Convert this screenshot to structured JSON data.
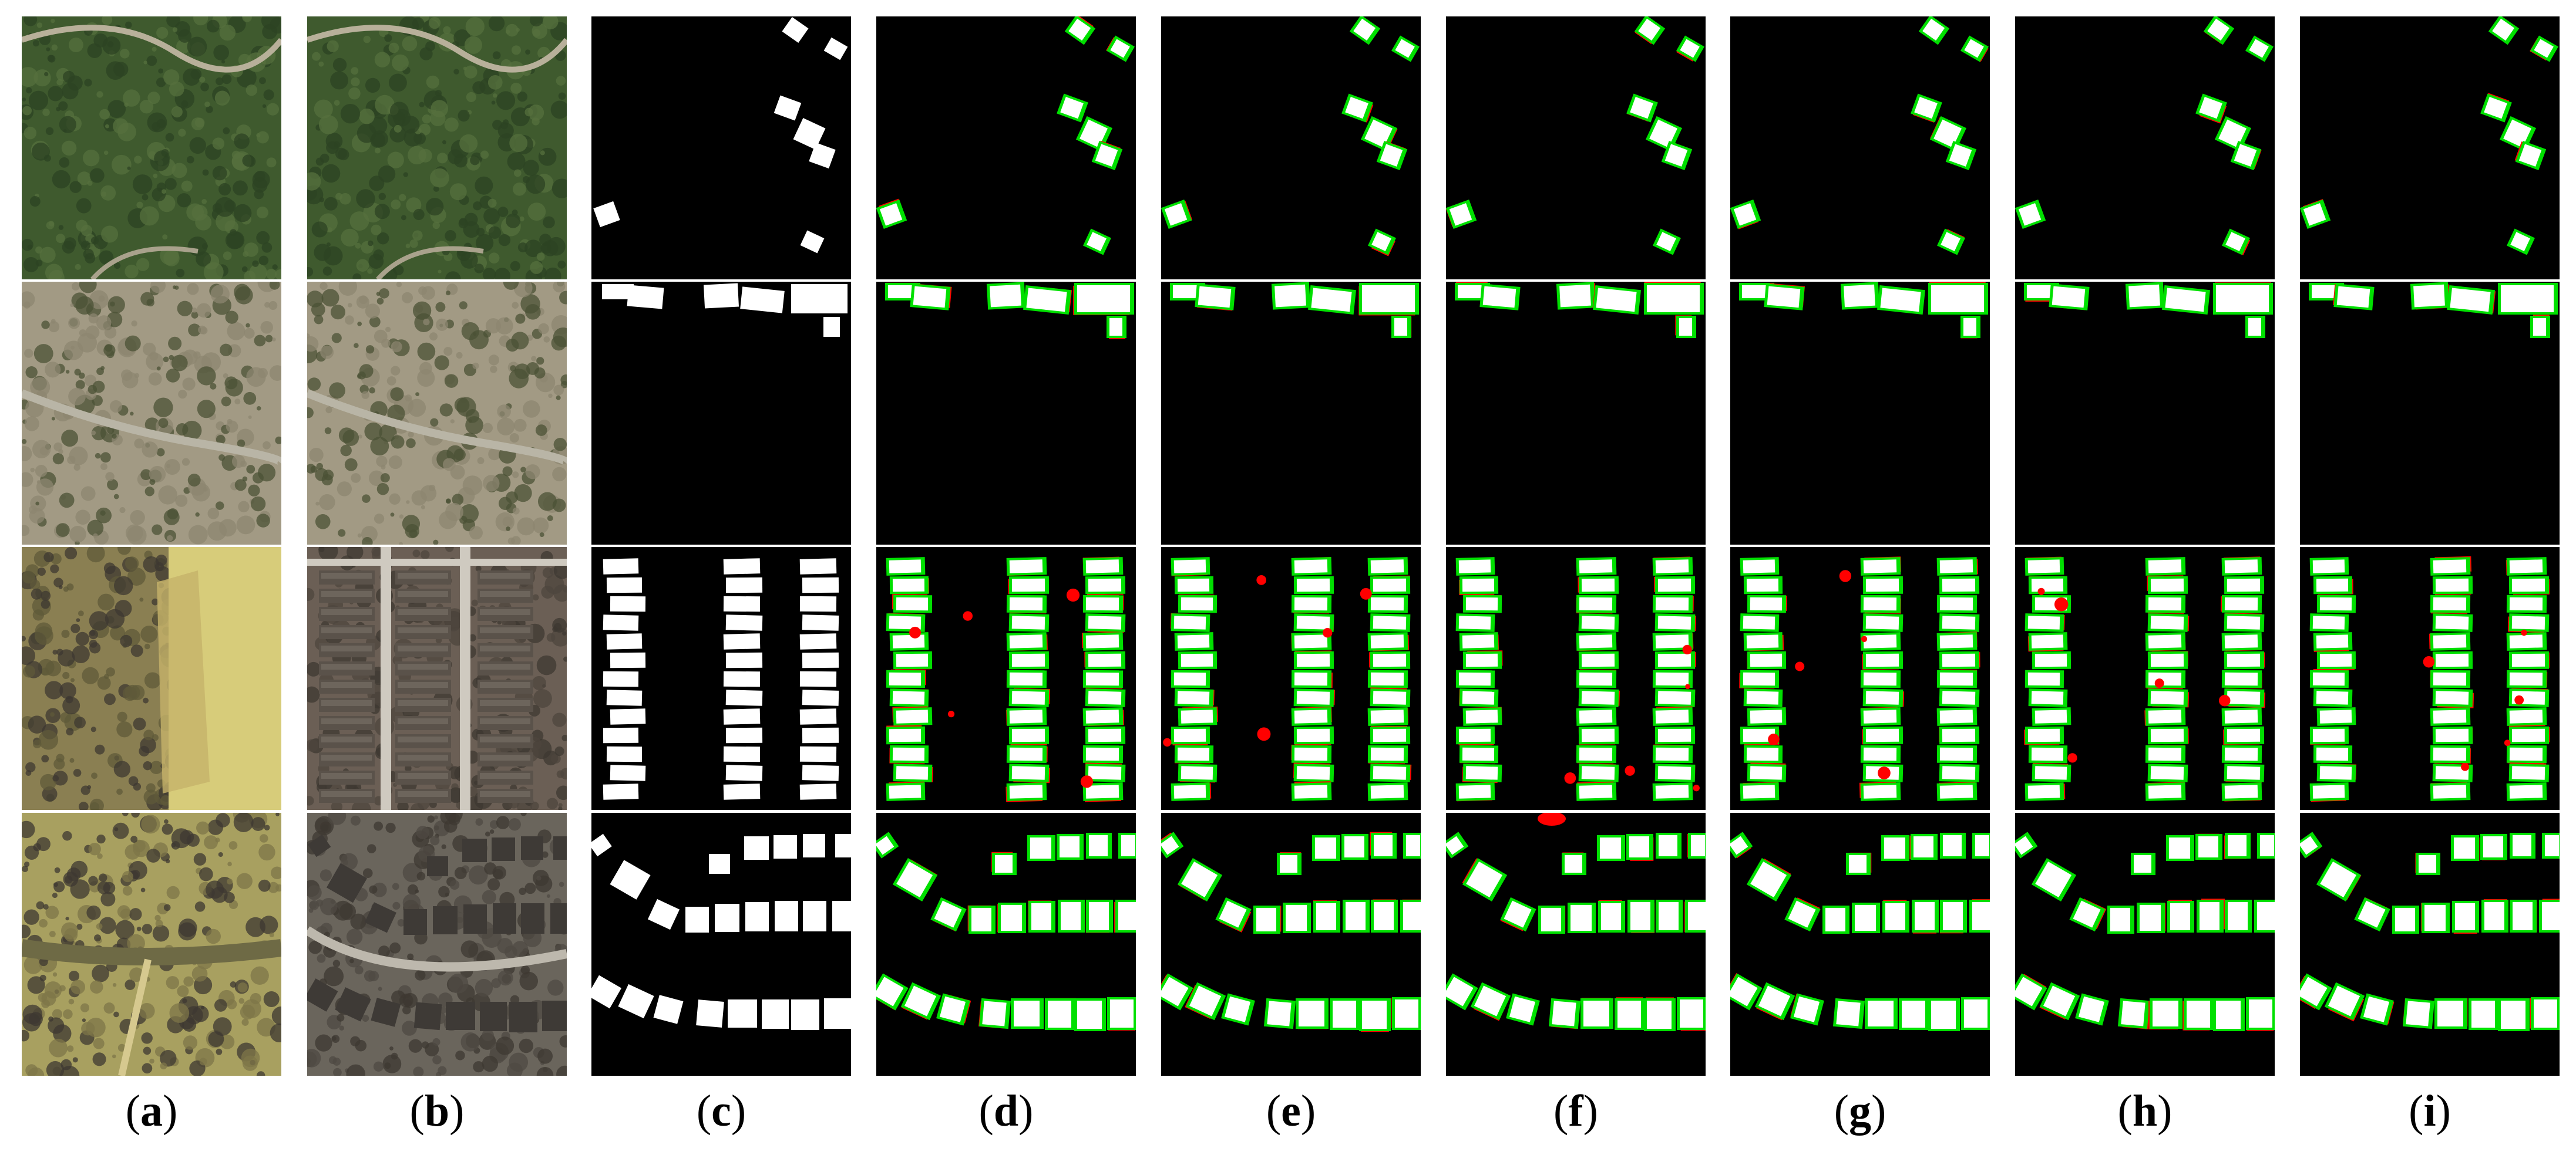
{
  "figure": {
    "columns": [
      {
        "id": "a",
        "kind": "image-t1",
        "label": "a"
      },
      {
        "id": "b",
        "kind": "image-t2",
        "label": "b"
      },
      {
        "id": "c",
        "kind": "ground-truth",
        "label": "c"
      },
      {
        "id": "d",
        "kind": "result",
        "label": "d"
      },
      {
        "id": "e",
        "kind": "result",
        "label": "e"
      },
      {
        "id": "f",
        "kind": "result",
        "label": "f"
      },
      {
        "id": "g",
        "kind": "result",
        "label": "g"
      },
      {
        "id": "h",
        "kind": "result",
        "label": "h"
      },
      {
        "id": "i",
        "kind": "result",
        "label": "i"
      }
    ],
    "rows": [
      {
        "id": "row-1",
        "scene": "forested-suburb"
      },
      {
        "id": "row-2",
        "scene": "scrubland-road"
      },
      {
        "id": "row-3",
        "scene": "grid-neighborhood"
      },
      {
        "id": "row-4",
        "scene": "curved-neighborhood"
      }
    ],
    "colors": {
      "background": "#ffffff",
      "mask_background": "#000000",
      "true_change": "#ffffff",
      "false_positive": "#ff0000",
      "false_negative": "#00e000"
    }
  }
}
